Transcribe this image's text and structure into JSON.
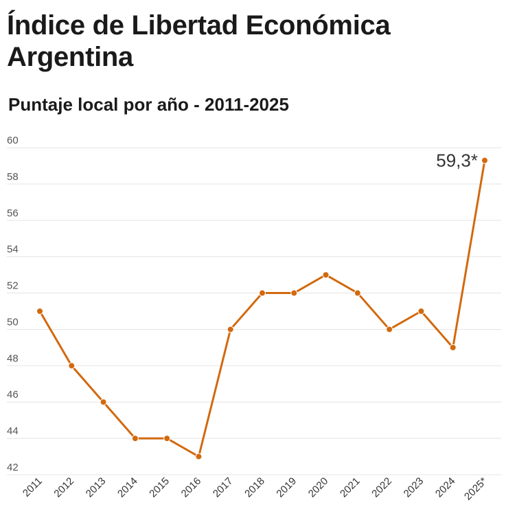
{
  "header": {
    "title": "Índice de Libertad Económica Argentina",
    "subtitle": "Puntaje local por año - 2011-2025"
  },
  "colors": {
    "series": "#D2690E",
    "grid": "#e4e4e4"
  },
  "chart_data": {
    "type": "line",
    "title": "Índice de Libertad Económica Argentina",
    "subtitle": "Puntaje local por año - 2011-2025",
    "xlabel": "",
    "ylabel": "",
    "categories": [
      "2011",
      "2012",
      "2013",
      "2014",
      "2015",
      "2016",
      "2017",
      "2018",
      "2019",
      "2020",
      "2021",
      "2022",
      "2023",
      "2024",
      "2025*"
    ],
    "series": [
      {
        "values": [
          51,
          48,
          46,
          44,
          44,
          43,
          50,
          52,
          52,
          53,
          52,
          50,
          51,
          49,
          59.3
        ]
      }
    ],
    "ylim": [
      42,
      60
    ],
    "yticks": [
      42,
      44,
      46,
      48,
      50,
      52,
      54,
      56,
      58,
      60
    ],
    "grid": true,
    "legend": "none",
    "annotations": [
      {
        "category": "2025*",
        "text": "59,3*"
      }
    ]
  }
}
